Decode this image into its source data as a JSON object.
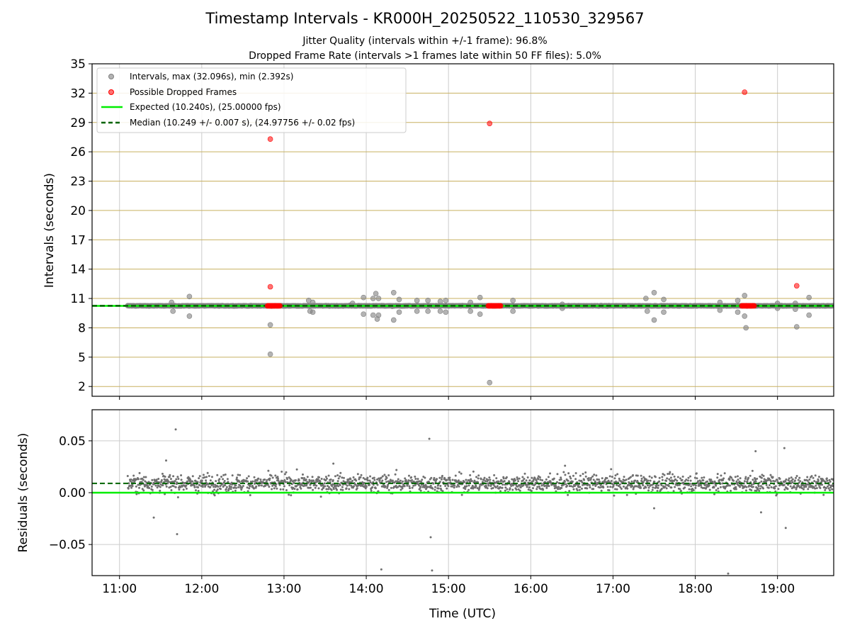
{
  "chart_data": [
    {
      "type": "scatter",
      "panel": "top",
      "title": "Timestamp Intervals - KR000H_20250522_110530_329567",
      "subtitle_lines": [
        "Jitter Quality (intervals within +/-1 frame): 96.8%",
        "Dropped Frame Rate (intervals >1 frames late within 50 FF files): 5.0%"
      ],
      "ylabel": "Intervals (seconds)",
      "ylim": [
        1,
        35
      ],
      "yticks": [
        "2",
        "5",
        "8",
        "11",
        "14",
        "17",
        "20",
        "23",
        "26",
        "29",
        "32",
        "35"
      ],
      "xlim": [
        "10:40",
        "19:41"
      ],
      "grid": true,
      "legend": {
        "position": "top-left",
        "entries": [
          "Intervals, max (32.096s), min (2.392s)",
          "Possible Dropped Frames",
          "Expected (10.240s), (25.00000 fps)",
          "Median (10.249 +/- 0.007 s), (24.97756 +/- 0.02 fps)"
        ]
      },
      "expected_interval": 10.24,
      "median_interval": 10.249,
      "colors": {
        "intervals": "#808080",
        "dropped": "#ff0000",
        "expected": "#00ee00",
        "median": "#006400",
        "grid_horizontal": "#c8b060"
      },
      "intervals_baseline_range": [
        "11:06",
        "19:41"
      ],
      "intervals_outliers": [
        {
          "t": "11:38",
          "v": 10.6
        },
        {
          "t": "11:39",
          "v": 9.7
        },
        {
          "t": "11:51",
          "v": 11.2
        },
        {
          "t": "11:51",
          "v": 9.2
        },
        {
          "t": "12:50",
          "v": 8.3
        },
        {
          "t": "12:50",
          "v": 5.3
        },
        {
          "t": "13:18",
          "v": 10.8
        },
        {
          "t": "13:19",
          "v": 9.7
        },
        {
          "t": "13:21",
          "v": 10.6
        },
        {
          "t": "13:21",
          "v": 9.6
        },
        {
          "t": "13:48",
          "v": 10.3
        },
        {
          "t": "13:50",
          "v": 10.5
        },
        {
          "t": "13:58",
          "v": 11.1
        },
        {
          "t": "13:58",
          "v": 9.4
        },
        {
          "t": "14:05",
          "v": 11.0
        },
        {
          "t": "14:05",
          "v": 9.3
        },
        {
          "t": "14:07",
          "v": 11.5
        },
        {
          "t": "14:08",
          "v": 8.9
        },
        {
          "t": "14:09",
          "v": 11.0
        },
        {
          "t": "14:09",
          "v": 9.3
        },
        {
          "t": "14:19",
          "v": 10.2
        },
        {
          "t": "14:20",
          "v": 11.6
        },
        {
          "t": "14:20",
          "v": 8.8
        },
        {
          "t": "14:24",
          "v": 10.9
        },
        {
          "t": "14:24",
          "v": 9.6
        },
        {
          "t": "14:37",
          "v": 10.8
        },
        {
          "t": "14:37",
          "v": 9.7
        },
        {
          "t": "14:45",
          "v": 10.8
        },
        {
          "t": "14:45",
          "v": 9.7
        },
        {
          "t": "14:54",
          "v": 10.7
        },
        {
          "t": "14:54",
          "v": 9.7
        },
        {
          "t": "14:58",
          "v": 10.8
        },
        {
          "t": "14:58",
          "v": 9.6
        },
        {
          "t": "15:16",
          "v": 10.6
        },
        {
          "t": "15:16",
          "v": 9.7
        },
        {
          "t": "15:23",
          "v": 11.1
        },
        {
          "t": "15:23",
          "v": 9.4
        },
        {
          "t": "15:30",
          "v": 2.4
        },
        {
          "t": "15:47",
          "v": 10.8
        },
        {
          "t": "15:47",
          "v": 9.7
        },
        {
          "t": "16:23",
          "v": 10.4
        },
        {
          "t": "16:23",
          "v": 10.0
        },
        {
          "t": "17:24",
          "v": 11.0
        },
        {
          "t": "17:25",
          "v": 9.7
        },
        {
          "t": "17:30",
          "v": 11.6
        },
        {
          "t": "17:30",
          "v": 8.8
        },
        {
          "t": "17:37",
          "v": 10.9
        },
        {
          "t": "17:37",
          "v": 9.6
        },
        {
          "t": "18:18",
          "v": 10.6
        },
        {
          "t": "18:18",
          "v": 9.8
        },
        {
          "t": "18:31",
          "v": 10.8
        },
        {
          "t": "18:31",
          "v": 9.6
        },
        {
          "t": "18:36",
          "v": 11.3
        },
        {
          "t": "18:36",
          "v": 9.2
        },
        {
          "t": "18:37",
          "v": 8.0
        },
        {
          "t": "19:00",
          "v": 10.5
        },
        {
          "t": "19:00",
          "v": 10.0
        },
        {
          "t": "19:13",
          "v": 10.5
        },
        {
          "t": "19:13",
          "v": 9.9
        },
        {
          "t": "19:14",
          "v": 8.1
        },
        {
          "t": "19:23",
          "v": 11.1
        },
        {
          "t": "19:23",
          "v": 9.3
        }
      ],
      "dropped_frames": [
        {
          "t": "12:50",
          "v": 27.3
        },
        {
          "t": "12:50",
          "v": 12.2
        },
        {
          "t": "15:30",
          "v": 28.9
        },
        {
          "t": "18:36",
          "v": 32.1
        },
        {
          "t": "19:14",
          "v": 12.3
        }
      ],
      "dropped_frame_clusters": [
        {
          "start": "12:48",
          "end": "12:57",
          "v": 10.25
        },
        {
          "start": "15:29",
          "end": "15:38",
          "v": 10.25
        },
        {
          "start": "18:34",
          "end": "18:43",
          "v": 10.25
        }
      ]
    },
    {
      "type": "scatter",
      "panel": "bottom",
      "xlabel": "Time (UTC)",
      "ylabel": "Residuals (seconds)",
      "ylim": [
        -0.08,
        0.08
      ],
      "yticks": [
        "−0.05",
        "0.00",
        "0.05"
      ],
      "ytick_values": [
        -0.05,
        0.0,
        0.05
      ],
      "xticks": [
        "11:00",
        "12:00",
        "13:00",
        "14:00",
        "15:00",
        "16:00",
        "17:00",
        "18:00",
        "19:00"
      ],
      "xlim": [
        "10:40",
        "19:41"
      ],
      "grid": true,
      "median_residual": 0.009,
      "expected_residual": 0.0,
      "residual_band": {
        "center": 0.009,
        "spread": 0.008
      },
      "residual_outliers": [
        {
          "t": "11:41",
          "v": 0.061
        },
        {
          "t": "11:42",
          "v": -0.04
        },
        {
          "t": "11:25",
          "v": -0.024
        },
        {
          "t": "14:11",
          "v": -0.074
        },
        {
          "t": "14:46",
          "v": 0.052
        },
        {
          "t": "14:47",
          "v": -0.043
        },
        {
          "t": "14:48",
          "v": -0.075
        },
        {
          "t": "18:24",
          "v": -0.078
        },
        {
          "t": "19:05",
          "v": 0.043
        },
        {
          "t": "19:06",
          "v": -0.034
        },
        {
          "t": "18:44",
          "v": 0.04
        },
        {
          "t": "18:48",
          "v": -0.019
        },
        {
          "t": "11:34",
          "v": 0.031
        },
        {
          "t": "13:36",
          "v": 0.028
        },
        {
          "t": "16:25",
          "v": 0.026
        },
        {
          "t": "17:30",
          "v": -0.015
        }
      ]
    }
  ]
}
